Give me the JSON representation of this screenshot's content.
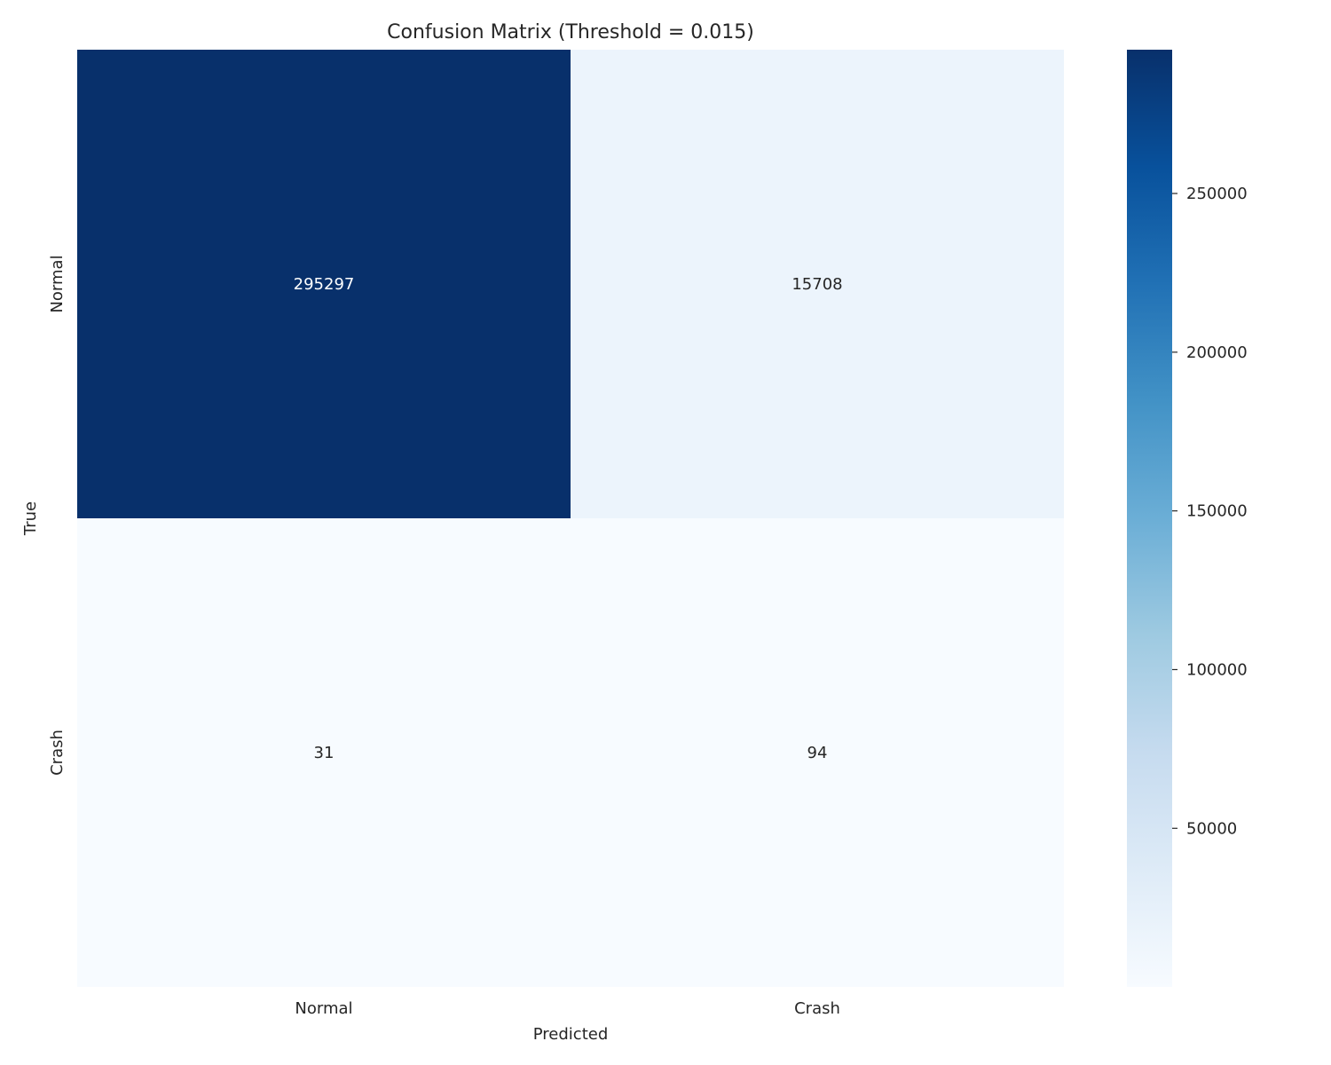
{
  "chart_data": {
    "type": "heatmap",
    "title": "Confusion Matrix (Threshold = 0.015)",
    "xlabel": "Predicted",
    "ylabel": "True",
    "x_categories": [
      "Normal",
      "Crash"
    ],
    "y_categories": [
      "Normal",
      "Crash"
    ],
    "values": [
      [
        295297,
        15708
      ],
      [
        31,
        94
      ]
    ],
    "colormap": "Blues",
    "colorbar": {
      "min": 31,
      "max": 295297,
      "ticks": [
        50000,
        100000,
        150000,
        200000,
        250000
      ],
      "tick_labels": [
        "50000",
        "100000",
        "150000",
        "200000",
        "250000"
      ]
    },
    "grid": false
  }
}
